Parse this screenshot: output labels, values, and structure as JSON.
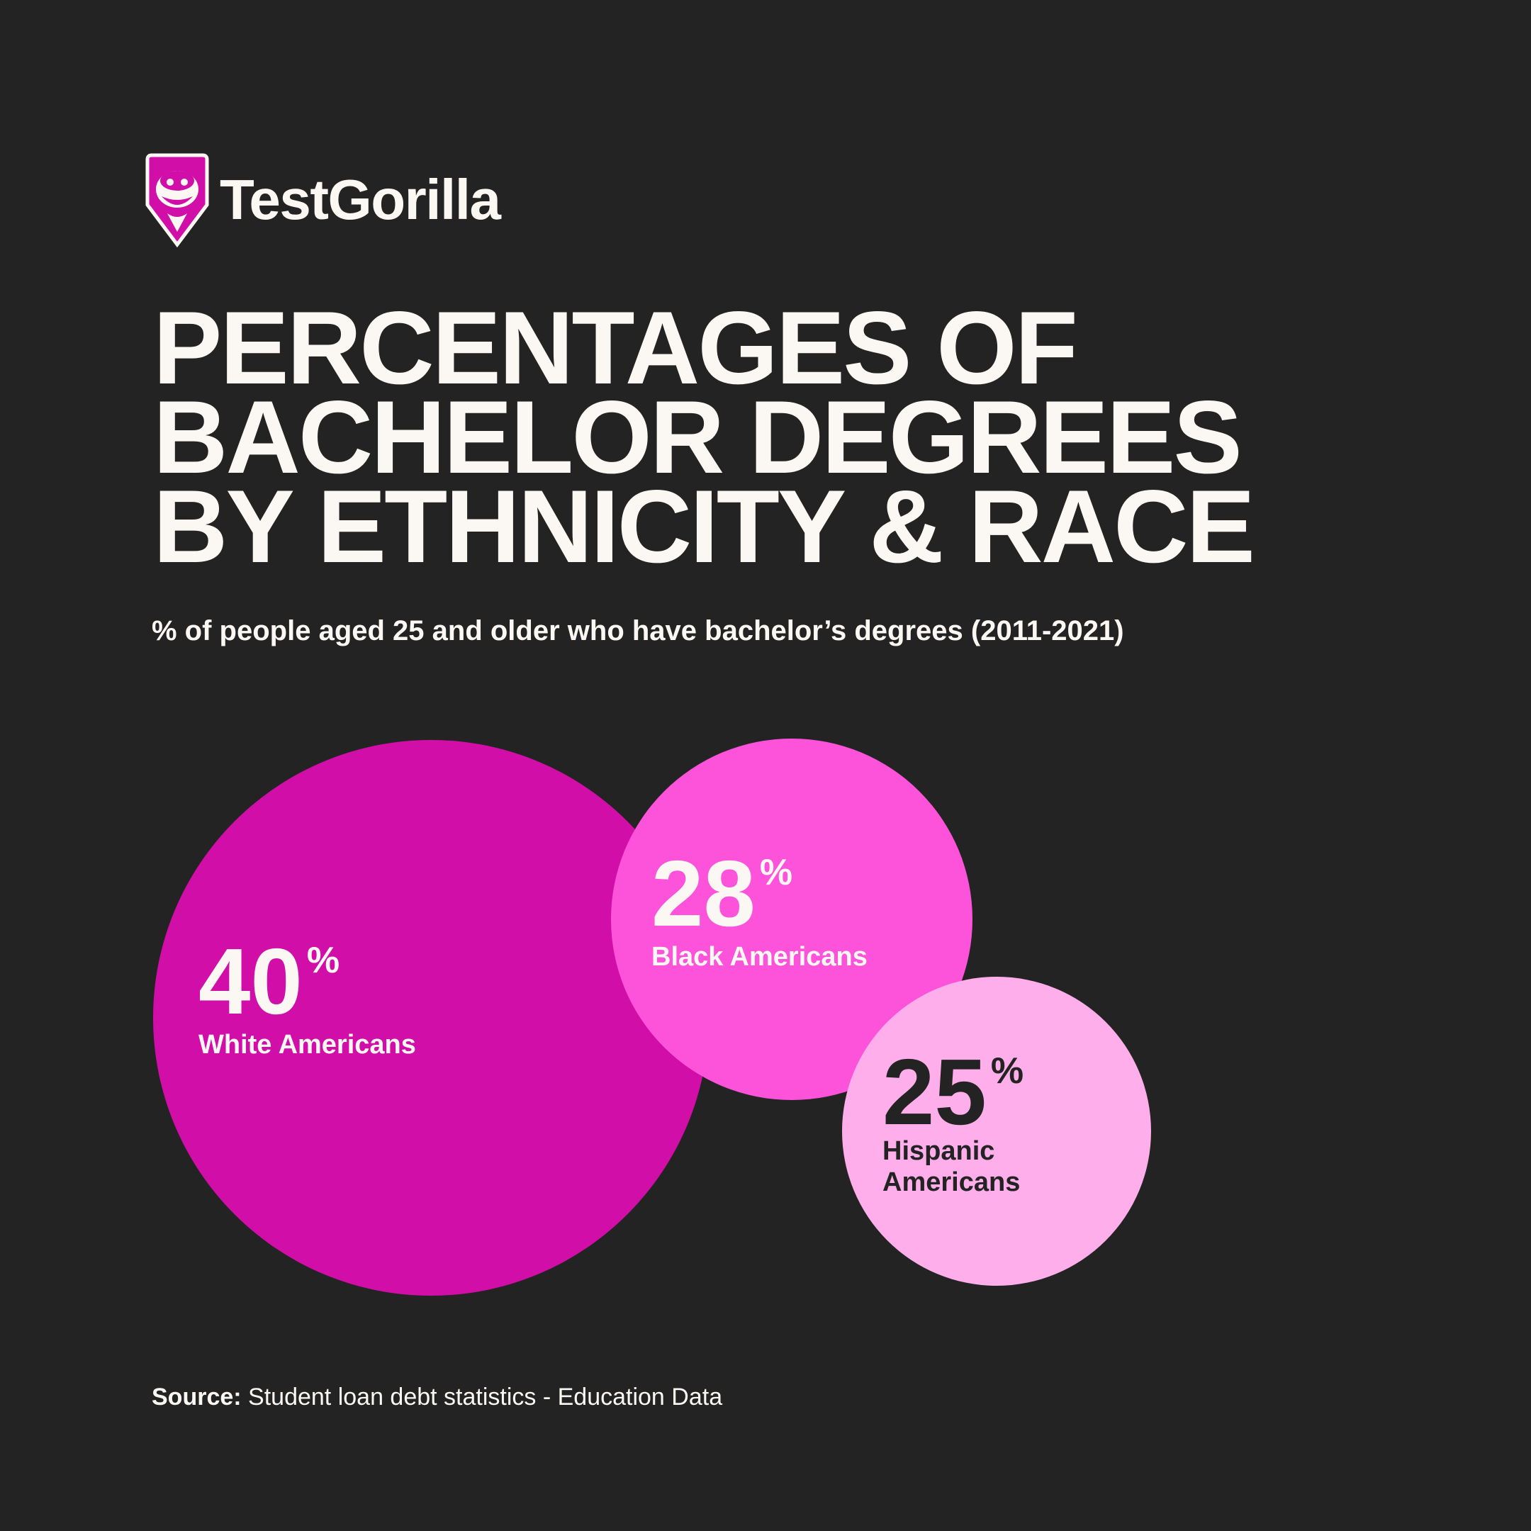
{
  "brand": {
    "name": "TestGorilla"
  },
  "title_lines": [
    "PERCENTAGES OF",
    "BACHELOR DEGREES",
    "BY ETHNICITY & RACE"
  ],
  "subtitle": "% of people aged 25 and older who have bachelor’s degrees (2011-2021)",
  "source": {
    "label": "Source:",
    "text": "Student loan debt statistics - Education Data"
  },
  "colors": {
    "background": "#232323",
    "text": "#fbf8f4",
    "white_americans": "#d10fa8",
    "black_americans": "#fd52da",
    "hispanic_americans": "#feaeea",
    "dark_text": "#232323"
  },
  "chart_data": {
    "type": "bubble",
    "unit": "%",
    "series": [
      {
        "category": "White Americans",
        "value": 40,
        "color": "#d10fa8",
        "label_color": "#fbf8f4"
      },
      {
        "category": "Black Americans",
        "value": 28,
        "color": "#fd52da",
        "label_color": "#fbf8f4"
      },
      {
        "category": "Hispanic Americans",
        "value": 25,
        "color": "#feaeea",
        "label_color": "#232323"
      }
    ]
  }
}
